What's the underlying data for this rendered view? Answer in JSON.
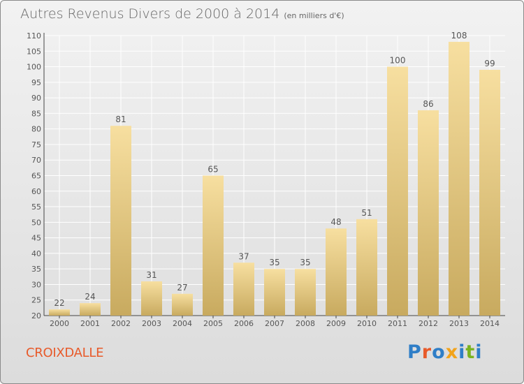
{
  "header": {
    "title": "Autres Revenus Divers de 2000 à 2014",
    "unit": "(en milliers d'€)"
  },
  "footer": {
    "commune": "CROIXDALLE",
    "logo": "Proxiti"
  },
  "colors": {
    "bar_top": "#f7dfa0",
    "bar_bottom": "#c8aa5f",
    "grid": "#ffffff",
    "text": "#555555",
    "commune": "#e85a2a",
    "logo_letters": [
      "#2f7ec7",
      "#e85a2a",
      "#2f7ec7",
      "#f2a31a",
      "#2f7ec7",
      "#7ab31f",
      "#2f7ec7"
    ]
  },
  "chart_data": {
    "type": "bar",
    "categories": [
      "2000",
      "2001",
      "2002",
      "2003",
      "2004",
      "2005",
      "2006",
      "2007",
      "2008",
      "2009",
      "2010",
      "2011",
      "2012",
      "2013",
      "2014"
    ],
    "values": [
      22,
      24,
      81,
      31,
      27,
      65,
      37,
      35,
      35,
      48,
      51,
      100,
      86,
      108,
      99
    ],
    "yticks": [
      20,
      25,
      30,
      35,
      40,
      45,
      50,
      55,
      60,
      65,
      70,
      75,
      80,
      85,
      90,
      95,
      100,
      105,
      110
    ],
    "ylim": [
      20,
      110
    ],
    "grid": true,
    "xlabel": "",
    "ylabel": ""
  }
}
